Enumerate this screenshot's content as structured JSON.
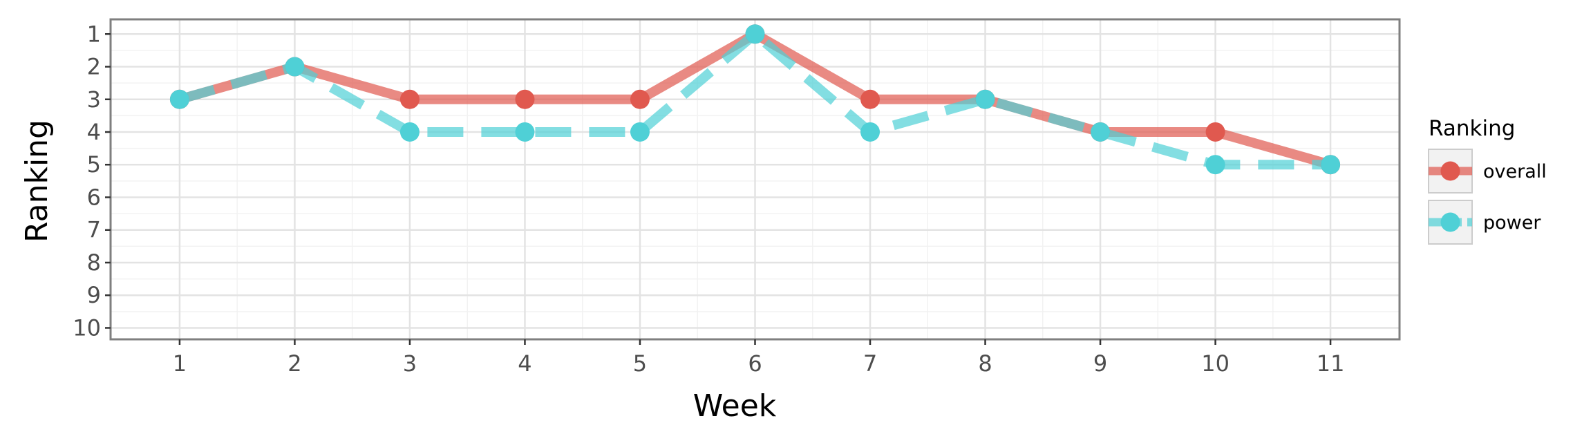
{
  "chart_data": {
    "type": "line",
    "title": "",
    "xlabel": "Week",
    "ylabel": "Ranking",
    "x": [
      1,
      2,
      3,
      4,
      5,
      6,
      7,
      8,
      9,
      10,
      11
    ],
    "x_tick_labels": [
      "1",
      "2",
      "3",
      "4",
      "5",
      "6",
      "7",
      "8",
      "9",
      "10",
      "11"
    ],
    "y_tick_labels": [
      "1",
      "2",
      "3",
      "4",
      "5",
      "6",
      "7",
      "8",
      "9",
      "10"
    ],
    "xlim": [
      0.4,
      11.6
    ],
    "ylim": [
      10.35,
      0.55
    ],
    "y_reversed": true,
    "grid": true,
    "legend": {
      "title": "Ranking",
      "placement": "right"
    },
    "series": [
      {
        "name": "overall",
        "color": "#e0594f",
        "line_style": "solid",
        "values": [
          3,
          2,
          3,
          3,
          3,
          1,
          3,
          3,
          4,
          4,
          5
        ]
      },
      {
        "name": "power",
        "color": "#4fd0d6",
        "line_style": "dashed",
        "values": [
          3,
          2,
          4,
          4,
          4,
          1,
          4,
          3,
          4,
          5,
          5
        ]
      }
    ]
  }
}
